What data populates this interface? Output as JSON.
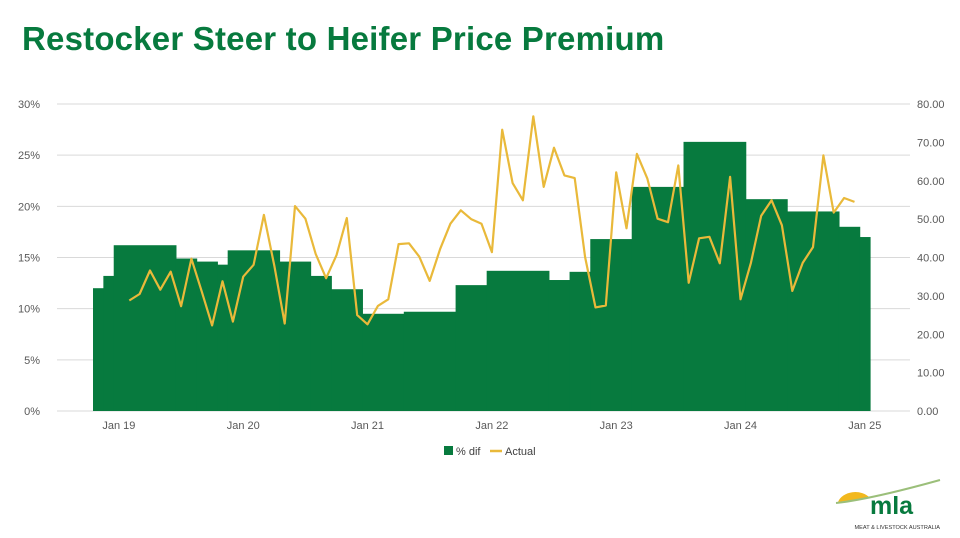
{
  "page": {
    "title": "Restocker Steer to Heifer Price Premium"
  },
  "colors": {
    "bar": "#077a3e",
    "line": "#e9b93a",
    "grid": "#d9d9d9",
    "title": "#077a3e"
  },
  "logo": {
    "text": "mla",
    "subtitle": "MEAT & LIVESTOCK AUSTRALIA"
  },
  "chart_data": {
    "type": "bar+line",
    "title": "",
    "grid": true,
    "legend_position": "bottom",
    "x": {
      "ticks": [
        "Jan 19",
        "Jan 20",
        "Jan 21",
        "Jan 22",
        "Jan 23",
        "Jan 24",
        "Jan 25"
      ],
      "range": [
        "2018-11",
        "2025-02"
      ]
    },
    "y_left": {
      "ticks": [
        "0%",
        "5%",
        "10%",
        "15%",
        "20%",
        "25%",
        "30%"
      ],
      "range": [
        0,
        30
      ],
      "unit": "%"
    },
    "y_right": {
      "ticks": [
        "0.00",
        "10.00",
        "20.00",
        "30.00",
        "40.00",
        "50.00",
        "60.00",
        "70.00",
        "80.00"
      ],
      "range": [
        0,
        80
      ]
    },
    "series": [
      {
        "name": "% dif",
        "kind": "bar",
        "axis": "left",
        "segments": [
          {
            "from": "2018-11",
            "to": "2018-12",
            "value": 12.0
          },
          {
            "from": "2018-12",
            "to": "2019-01",
            "value": 13.2
          },
          {
            "from": "2019-01",
            "to": "2019-07",
            "value": 16.2
          },
          {
            "from": "2019-07",
            "to": "2019-09",
            "value": 14.9
          },
          {
            "from": "2019-09",
            "to": "2019-11",
            "value": 14.6
          },
          {
            "from": "2019-11",
            "to": "2019-12",
            "value": 14.3
          },
          {
            "from": "2019-12",
            "to": "2020-05",
            "value": 15.7
          },
          {
            "from": "2020-05",
            "to": "2020-08",
            "value": 14.6
          },
          {
            "from": "2020-08",
            "to": "2020-10",
            "value": 13.2
          },
          {
            "from": "2020-10",
            "to": "2021-01",
            "value": 11.9
          },
          {
            "from": "2021-01",
            "to": "2021-05",
            "value": 9.5
          },
          {
            "from": "2021-05",
            "to": "2021-10",
            "value": 9.7
          },
          {
            "from": "2021-10",
            "to": "2022-01",
            "value": 12.3
          },
          {
            "from": "2022-01",
            "to": "2022-07",
            "value": 13.7
          },
          {
            "from": "2022-07",
            "to": "2022-09",
            "value": 12.8
          },
          {
            "from": "2022-09",
            "to": "2022-11",
            "value": 13.6
          },
          {
            "from": "2022-11",
            "to": "2023-03",
            "value": 16.8
          },
          {
            "from": "2023-03",
            "to": "2023-08",
            "value": 21.9
          },
          {
            "from": "2023-08",
            "to": "2024-02",
            "value": 26.3
          },
          {
            "from": "2024-02",
            "to": "2024-06",
            "value": 20.7
          },
          {
            "from": "2024-06",
            "to": "2024-11",
            "value": 19.5
          },
          {
            "from": "2024-11",
            "to": "2025-01",
            "value": 18.0
          },
          {
            "from": "2025-01",
            "to": "2025-02",
            "value": 17.0
          }
        ]
      },
      {
        "name": "Actual",
        "kind": "line",
        "axis": "right",
        "points": [
          [
            "2019-02",
            28.8
          ],
          [
            "2019-03",
            30.5
          ],
          [
            "2019-04",
            36.6
          ],
          [
            "2019-05",
            31.6
          ],
          [
            "2019-06",
            36.3
          ],
          [
            "2019-07",
            27.3
          ],
          [
            "2019-08",
            39.7
          ],
          [
            "2019-09",
            31.1
          ],
          [
            "2019-10",
            22.3
          ],
          [
            "2019-11",
            33.8
          ],
          [
            "2019-12",
            23.3
          ],
          [
            "2020-01",
            35.0
          ],
          [
            "2020-02",
            38.1
          ],
          [
            "2020-03",
            51.1
          ],
          [
            "2020-04",
            37.9
          ],
          [
            "2020-05",
            22.8
          ],
          [
            "2020-06",
            53.4
          ],
          [
            "2020-07",
            50.1
          ],
          [
            "2020-08",
            40.9
          ],
          [
            "2020-09",
            34.6
          ],
          [
            "2020-10",
            40.6
          ],
          [
            "2020-11",
            50.3
          ],
          [
            "2020-12",
            25.0
          ],
          [
            "2021-01",
            22.6
          ],
          [
            "2021-02",
            27.4
          ],
          [
            "2021-03",
            29.1
          ],
          [
            "2021-04",
            43.5
          ],
          [
            "2021-05",
            43.7
          ],
          [
            "2021-06",
            40.2
          ],
          [
            "2021-07",
            33.9
          ],
          [
            "2021-08",
            42.2
          ],
          [
            "2021-09",
            48.8
          ],
          [
            "2021-10",
            52.3
          ],
          [
            "2021-11",
            50.0
          ],
          [
            "2021-12",
            48.8
          ],
          [
            "2022-01",
            41.4
          ],
          [
            "2022-02",
            73.3
          ],
          [
            "2022-03",
            59.4
          ],
          [
            "2022-04",
            54.9
          ],
          [
            "2022-05",
            76.8
          ],
          [
            "2022-06",
            58.4
          ],
          [
            "2022-07",
            68.6
          ],
          [
            "2022-08",
            61.4
          ],
          [
            "2022-09",
            60.7
          ],
          [
            "2022-10",
            40.1
          ],
          [
            "2022-11",
            27.0
          ],
          [
            "2022-12",
            27.5
          ],
          [
            "2023-01",
            62.2
          ],
          [
            "2023-02",
            47.6
          ],
          [
            "2023-03",
            67.0
          ],
          [
            "2023-04",
            60.6
          ],
          [
            "2023-05",
            50.1
          ],
          [
            "2023-06",
            49.2
          ],
          [
            "2023-07",
            64.0
          ],
          [
            "2023-08",
            33.4
          ],
          [
            "2023-09",
            45.0
          ],
          [
            "2023-10",
            45.4
          ],
          [
            "2023-11",
            38.5
          ],
          [
            "2023-12",
            61.0
          ],
          [
            "2024-01",
            29.1
          ],
          [
            "2024-02",
            38.6
          ],
          [
            "2024-03",
            50.9
          ],
          [
            "2024-04",
            54.9
          ],
          [
            "2024-05",
            48.4
          ],
          [
            "2024-06",
            31.3
          ],
          [
            "2024-07",
            38.6
          ],
          [
            "2024-08",
            42.7
          ],
          [
            "2024-09",
            66.6
          ],
          [
            "2024-10",
            51.7
          ],
          [
            "2024-11",
            55.5
          ],
          [
            "2024-12",
            54.5
          ]
        ]
      }
    ]
  }
}
